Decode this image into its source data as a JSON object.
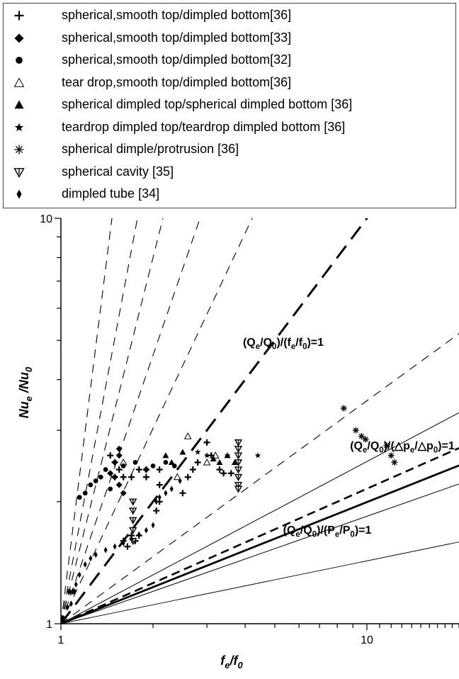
{
  "chart_data": {
    "type": "scatter",
    "x_scale": "log",
    "y_scale": "log",
    "xlim": [
      1,
      20
    ],
    "ylim": [
      1,
      10
    ],
    "xlabel": {
      "base": "f",
      "sub1": "e",
      "mid": "/f",
      "sub2": "0"
    },
    "ylabel": {
      "base": "Nu",
      "sub1": "e",
      "mid": " /Nu",
      "sub2": "0"
    },
    "x_ticks": [
      "1",
      "10"
    ],
    "y_ticks": [
      "1",
      "10"
    ],
    "grid": false,
    "legend_position": "top",
    "reference_lines": [
      {
        "name": "(Qe/Q0)/(fe/f0)=1",
        "exponent": 1.0,
        "style": "thick-dash"
      },
      {
        "name": "(Qe/Q0)/(Δpe/Δp0)=1",
        "exponent": 0.333,
        "style": "medium-dash"
      },
      {
        "name": "(Qe/Q0)/(Pe/P0)=1",
        "exponent": 0.3,
        "style": "thick-solid"
      }
    ],
    "annotations": [
      {
        "parts": [
          "(Q",
          "e",
          "/Q",
          "0",
          ")/(f",
          "e",
          "/f",
          "0",
          ")=1"
        ]
      },
      {
        "parts": [
          "(Q",
          "e",
          "/Q",
          "0",
          ")/(△p",
          "e",
          "/△p",
          "0",
          ")=1"
        ]
      },
      {
        "parts": [
          "(Q",
          "e",
          "/Q",
          "0",
          ")/(P",
          "e",
          "/P",
          "0",
          ")=1"
        ]
      }
    ],
    "series": [
      {
        "name": "spherical,smooth top/dimpled bottom[36]",
        "marker": "plus",
        "points": [
          [
            1.45,
            2.6
          ],
          [
            1.5,
            2.5
          ],
          [
            1.55,
            2.4
          ],
          [
            1.6,
            2.3
          ],
          [
            1.7,
            2.3
          ],
          [
            1.5,
            2.3
          ],
          [
            1.8,
            2.4
          ],
          [
            1.9,
            2.4
          ],
          [
            2.1,
            2.4
          ],
          [
            1.9,
            2.3
          ],
          [
            2.1,
            2.2
          ],
          [
            2.1,
            2.0
          ],
          [
            2.05,
            1.9
          ],
          [
            2.6,
            2.3
          ],
          [
            2.8,
            2.5
          ],
          [
            2.7,
            2.4
          ],
          [
            3.1,
            2.6
          ],
          [
            3.0,
            2.8
          ],
          [
            3.3,
            2.4
          ],
          [
            3.4,
            2.35
          ],
          [
            3.6,
            2.35
          ],
          [
            2.5,
            2.1
          ],
          [
            1.7,
            1.65
          ],
          [
            1.75,
            1.6
          ],
          [
            1.8,
            1.65
          ],
          [
            1.6,
            1.6
          ],
          [
            1.65,
            1.55
          ]
        ]
      },
      {
        "name": "spherical,smooth top/dimpled bottom[33]",
        "marker": "diamond",
        "points": [
          [
            1.55,
            2.7
          ],
          [
            1.55,
            2.6
          ],
          [
            1.5,
            2.5
          ],
          [
            1.45,
            2.35
          ],
          [
            1.5,
            2.3
          ],
          [
            1.55,
            2.2
          ],
          [
            1.6,
            2.1
          ]
        ]
      },
      {
        "name": "spherical,smooth top/dimpled bottom[32]",
        "marker": "circle",
        "points": [
          [
            1.15,
            2.05
          ],
          [
            1.2,
            2.1
          ],
          [
            1.25,
            2.2
          ],
          [
            1.3,
            2.25
          ],
          [
            1.35,
            2.3
          ],
          [
            1.4,
            2.4
          ],
          [
            1.6,
            2.45
          ],
          [
            1.75,
            2.5
          ],
          [
            1.9,
            2.4
          ],
          [
            2.0,
            2.45
          ],
          [
            2.2,
            2.5
          ],
          [
            2.35,
            2.45
          ],
          [
            1.45,
            2.15
          ]
        ]
      },
      {
        "name": "tear drop,smooth top/dimpled bottom[36]",
        "marker": "triangle-open",
        "points": [
          [
            1.6,
            2.5
          ],
          [
            2.6,
            2.9
          ],
          [
            3.0,
            2.5
          ],
          [
            3.2,
            2.6
          ],
          [
            2.4,
            2.3
          ]
        ]
      },
      {
        "name": "spherical dimpled top/spherical dimpled bottom [36]",
        "marker": "triangle",
        "points": [
          [
            2.2,
            2.6
          ],
          [
            2.5,
            2.65
          ],
          [
            3.15,
            2.55
          ],
          [
            3.3,
            2.5
          ],
          [
            3.5,
            2.6
          ],
          [
            2.3,
            2.5
          ],
          [
            3.7,
            2.5
          ]
        ]
      },
      {
        "name": "teardrop dimpled top/teardrop dimpled bottom [36]",
        "marker": "star",
        "points": [
          [
            2.8,
            2.65
          ],
          [
            3.0,
            2.6
          ],
          [
            3.5,
            2.6
          ],
          [
            4.4,
            2.6
          ]
        ]
      },
      {
        "name": "spherical dimple/protrusion [36]",
        "marker": "asterisk",
        "points": [
          [
            8.4,
            3.4
          ],
          [
            9.2,
            3.0
          ],
          [
            9.6,
            2.9
          ],
          [
            9.9,
            2.85
          ],
          [
            11.6,
            2.75
          ],
          [
            12.0,
            2.6
          ],
          [
            12.3,
            2.5
          ]
        ]
      },
      {
        "name": "spherical cavity [35]",
        "marker": "triangle-down-open",
        "points": [
          [
            1.72,
            1.9
          ],
          [
            1.72,
            1.8
          ],
          [
            1.72,
            1.7
          ],
          [
            1.72,
            1.6
          ],
          [
            1.72,
            2.0
          ],
          [
            3.8,
            2.8
          ],
          [
            3.8,
            2.7
          ],
          [
            3.8,
            2.6
          ],
          [
            3.8,
            2.5
          ],
          [
            3.8,
            2.4
          ],
          [
            3.8,
            2.3
          ],
          [
            3.8,
            2.2
          ],
          [
            3.8,
            2.15
          ]
        ]
      },
      {
        "name": "dimpled tube [34]",
        "marker": "small-diamond",
        "points": [
          [
            1.05,
            1.1
          ],
          [
            1.08,
            1.12
          ],
          [
            1.1,
            1.2
          ],
          [
            1.12,
            1.25
          ],
          [
            1.15,
            1.32
          ],
          [
            1.2,
            1.4
          ],
          [
            1.25,
            1.45
          ],
          [
            1.3,
            1.48
          ],
          [
            1.4,
            1.52
          ],
          [
            1.5,
            1.55
          ],
          [
            1.6,
            1.58
          ],
          [
            1.7,
            1.62
          ],
          [
            1.8,
            1.66
          ],
          [
            1.9,
            1.7
          ],
          [
            2.0,
            1.75
          ],
          [
            2.05,
            2.0
          ],
          [
            2.1,
            2.05
          ],
          [
            2.2,
            2.1
          ],
          [
            2.3,
            2.15
          ],
          [
            2.45,
            2.25
          ],
          [
            1.06,
            1.2
          ],
          [
            1.07,
            1.2
          ],
          [
            1.09,
            1.2
          ],
          [
            1.11,
            1.2
          ]
        ]
      }
    ]
  }
}
